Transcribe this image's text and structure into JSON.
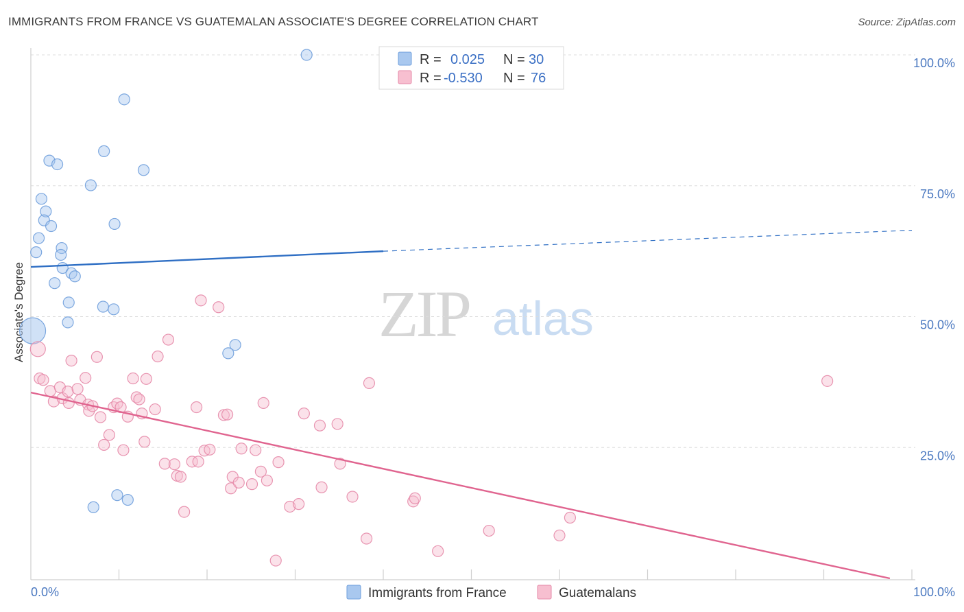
{
  "header": {
    "title": "IMMIGRANTS FROM FRANCE VS GUATEMALAN ASSOCIATE'S DEGREE CORRELATION CHART",
    "source": "Source: ZipAtlas.com"
  },
  "watermark": {
    "zip": "ZIP",
    "atlas": "atlas"
  },
  "legend_box": {
    "rows": [
      {
        "r_label": "R =",
        "r_value": "0.025",
        "n_label": "N =",
        "n_value": "30",
        "color": "#a9c8ef",
        "stroke": "#6f9fdc"
      },
      {
        "r_label": "R =",
        "r_value": "-0.530",
        "n_label": "N =",
        "n_value": "76",
        "color": "#f7bfd0",
        "stroke": "#e58aa8"
      }
    ]
  },
  "bottom_legend": {
    "items": [
      {
        "label": "Immigrants from France",
        "color": "#a9c8ef",
        "stroke": "#6f9fdc"
      },
      {
        "label": "Guatemalans",
        "color": "#f7bfd0",
        "stroke": "#e58aa8"
      }
    ]
  },
  "chart_data": {
    "type": "scatter",
    "title": "IMMIGRANTS FROM FRANCE VS GUATEMALAN ASSOCIATE'S DEGREE CORRELATION CHART",
    "xlabel": "",
    "ylabel": "Associate's Degree",
    "xlim": [
      0,
      100
    ],
    "ylim": [
      0,
      100
    ],
    "x_tick_labels": [
      "0.0%",
      "100.0%"
    ],
    "y_tick_labels": [
      "100.0%",
      "75.0%",
      "50.0%",
      "25.0%"
    ],
    "y_ticks": [
      100,
      75,
      50,
      25
    ],
    "grid": true,
    "legend_placement": "top-center",
    "series": [
      {
        "name": "Immigrants from France",
        "color": "#a9c8ef",
        "stroke": "#6f9fdc",
        "trend": {
          "x0": 0,
          "y0": 59.5,
          "x1": 40,
          "y1": 62.5,
          "dashed_to_x": 100,
          "dashed_to_y": 66.5,
          "color": "#2f6fc4"
        },
        "points": [
          [
            31.3,
            100
          ],
          [
            10.6,
            91.5
          ],
          [
            8.3,
            81.6
          ],
          [
            2.1,
            79.8
          ],
          [
            3.0,
            79.1
          ],
          [
            12.8,
            78.0
          ],
          [
            6.8,
            75.1
          ],
          [
            1.2,
            72.5
          ],
          [
            1.7,
            70.1
          ],
          [
            1.5,
            68.4
          ],
          [
            2.3,
            67.3
          ],
          [
            9.5,
            67.7
          ],
          [
            0.9,
            65.0
          ],
          [
            0.6,
            62.3
          ],
          [
            3.5,
            63.1
          ],
          [
            3.4,
            61.8
          ],
          [
            3.6,
            59.3
          ],
          [
            4.6,
            58.3
          ],
          [
            5.0,
            57.7
          ],
          [
            2.7,
            56.4
          ],
          [
            4.3,
            52.7
          ],
          [
            8.2,
            51.9
          ],
          [
            9.4,
            51.4
          ],
          [
            4.2,
            48.9
          ],
          [
            0.2,
            47.3
          ],
          [
            23.2,
            44.6
          ],
          [
            22.4,
            43.0
          ],
          [
            7.1,
            13.6
          ],
          [
            9.8,
            15.9
          ],
          [
            11.0,
            15.0
          ]
        ]
      },
      {
        "name": "Guatemalans",
        "color": "#f7bfd0",
        "stroke": "#e58aa8",
        "trend": {
          "x0": 0,
          "y0": 35.5,
          "x1": 97.5,
          "y1": 0,
          "color": "#e0648f"
        },
        "points": [
          [
            0.8,
            43.8
          ],
          [
            1.0,
            38.2
          ],
          [
            1.4,
            37.9
          ],
          [
            2.2,
            35.8
          ],
          [
            2.6,
            33.8
          ],
          [
            3.3,
            36.5
          ],
          [
            3.6,
            34.4
          ],
          [
            4.2,
            35.7
          ],
          [
            4.3,
            33.5
          ],
          [
            4.6,
            41.6
          ],
          [
            5.3,
            36.2
          ],
          [
            5.6,
            34.1
          ],
          [
            6.2,
            38.3
          ],
          [
            6.5,
            33.2
          ],
          [
            6.6,
            32.0
          ],
          [
            7.0,
            32.9
          ],
          [
            7.5,
            42.3
          ],
          [
            7.9,
            30.8
          ],
          [
            8.3,
            25.5
          ],
          [
            8.9,
            27.4
          ],
          [
            9.4,
            32.7
          ],
          [
            9.8,
            33.4
          ],
          [
            10.2,
            32.7
          ],
          [
            10.5,
            24.5
          ],
          [
            11.0,
            30.9
          ],
          [
            11.6,
            38.2
          ],
          [
            12.0,
            34.6
          ],
          [
            12.3,
            34.2
          ],
          [
            12.6,
            31.5
          ],
          [
            12.9,
            26.1
          ],
          [
            13.1,
            38.1
          ],
          [
            14.1,
            32.3
          ],
          [
            14.4,
            42.4
          ],
          [
            15.2,
            21.9
          ],
          [
            15.6,
            45.6
          ],
          [
            16.3,
            21.8
          ],
          [
            16.6,
            19.6
          ],
          [
            17.0,
            19.4
          ],
          [
            17.4,
            12.7
          ],
          [
            18.3,
            22.3
          ],
          [
            18.8,
            32.7
          ],
          [
            19.0,
            22.3
          ],
          [
            19.3,
            53.1
          ],
          [
            19.7,
            24.4
          ],
          [
            20.3,
            24.6
          ],
          [
            21.3,
            51.8
          ],
          [
            21.9,
            31.2
          ],
          [
            22.3,
            31.3
          ],
          [
            22.7,
            17.2
          ],
          [
            22.9,
            19.4
          ],
          [
            23.6,
            18.3
          ],
          [
            23.9,
            24.8
          ],
          [
            25.1,
            18.0
          ],
          [
            25.5,
            24.5
          ],
          [
            26.1,
            20.4
          ],
          [
            26.4,
            33.5
          ],
          [
            26.8,
            18.7
          ],
          [
            27.8,
            3.4
          ],
          [
            28.1,
            22.2
          ],
          [
            29.4,
            13.7
          ],
          [
            30.4,
            14.2
          ],
          [
            31.0,
            31.5
          ],
          [
            32.8,
            29.2
          ],
          [
            33.0,
            17.4
          ],
          [
            34.8,
            29.5
          ],
          [
            35.1,
            21.9
          ],
          [
            36.5,
            15.6
          ],
          [
            38.1,
            7.6
          ],
          [
            38.4,
            37.3
          ],
          [
            43.4,
            14.7
          ],
          [
            43.6,
            15.3
          ],
          [
            46.2,
            5.2
          ],
          [
            52.0,
            9.1
          ],
          [
            60.0,
            8.2
          ],
          [
            61.2,
            11.6
          ],
          [
            90.4,
            37.7
          ]
        ]
      }
    ]
  }
}
